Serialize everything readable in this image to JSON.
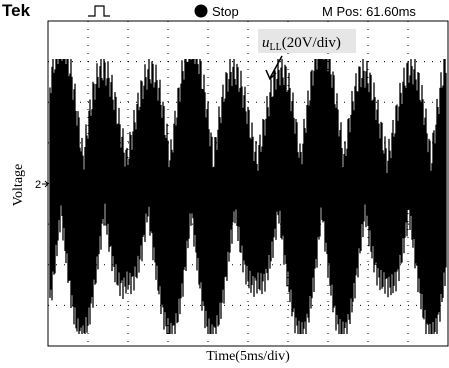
{
  "header": {
    "brand": "Tek",
    "status": "Stop",
    "position": "M Pos: 61.60ms"
  },
  "annotation": {
    "symbol": "u",
    "subscript": "LL",
    "unit": "(20V/div)"
  },
  "axes": {
    "y_label": "Voltage",
    "channel_marker": "2",
    "x_label": "Time(5ms/div)"
  }
}
